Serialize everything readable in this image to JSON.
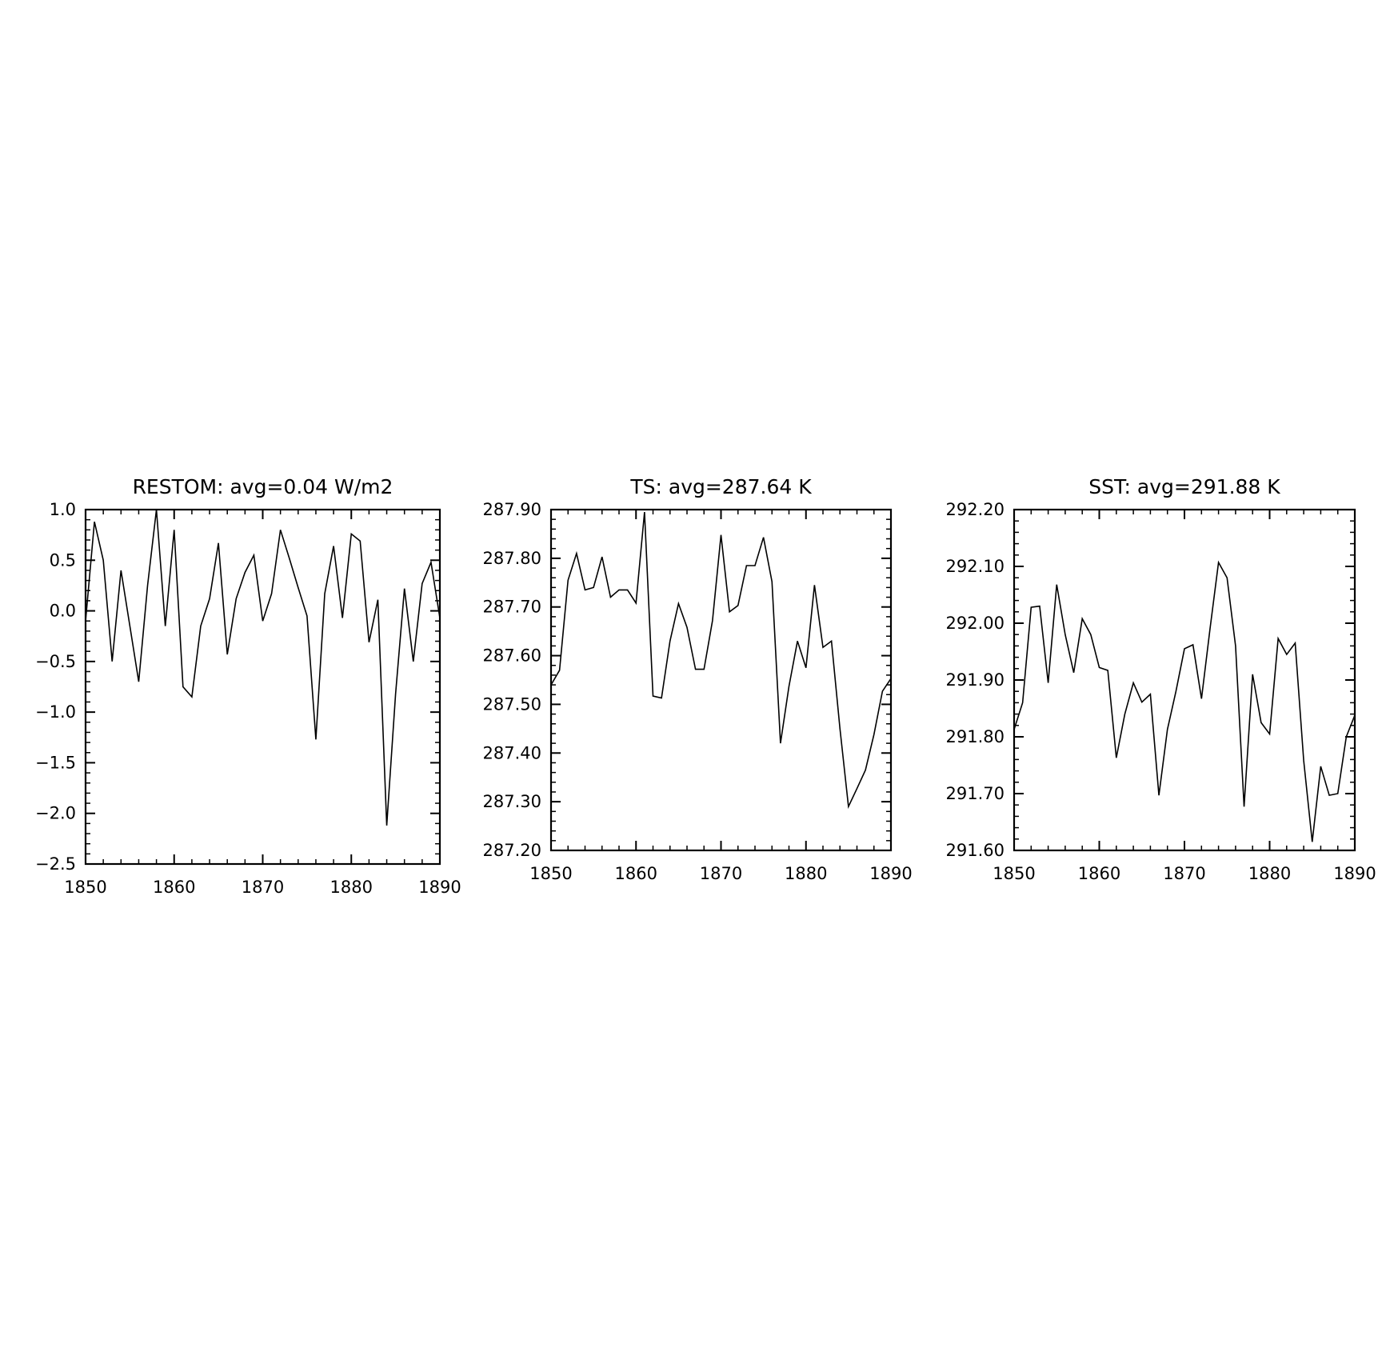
{
  "chart_data": [
    {
      "type": "line",
      "title": "RESTOM: avg=0.04 W/m2",
      "xlabel": "",
      "ylabel": "",
      "xlim": [
        1850,
        1890
      ],
      "ylim": [
        -2.5,
        1.0
      ],
      "x_ticks": [
        1850,
        1860,
        1870,
        1880,
        1890
      ],
      "x_tick_labels": [
        "1850",
        "1860",
        "1870",
        "1880",
        "1890"
      ],
      "y_ticks": [
        -2.5,
        -2.0,
        -1.5,
        -1.0,
        -0.5,
        0.0,
        0.5,
        1.0
      ],
      "y_tick_labels": [
        "−2.5",
        "−2.0",
        "−1.5",
        "−1.0",
        "−0.5",
        "0.0",
        "0.5",
        "1.0"
      ],
      "grid": false,
      "series": [
        {
          "color": "#000000",
          "x": [
            1850,
            1851,
            1852,
            1853,
            1854,
            1855,
            1856,
            1857,
            1858,
            1859,
            1860,
            1861,
            1862,
            1863,
            1864,
            1865,
            1866,
            1867,
            1868,
            1869,
            1870,
            1871,
            1872,
            1873,
            1874,
            1875,
            1876,
            1877,
            1878,
            1879,
            1880,
            1881,
            1882,
            1883,
            1884,
            1885,
            1886,
            1887,
            1888,
            1889,
            1890
          ],
          "y": [
            -0.1,
            0.88,
            0.5,
            -0.5,
            0.4,
            -0.15,
            -0.7,
            0.25,
            1.0,
            -0.15,
            0.8,
            -0.75,
            -0.85,
            -0.15,
            0.12,
            0.67,
            -0.43,
            0.12,
            0.38,
            0.55,
            -0.1,
            0.17,
            0.8,
            0.52,
            0.23,
            -0.05,
            -1.27,
            0.17,
            0.64,
            -0.07,
            0.76,
            0.69,
            -0.31,
            0.11,
            -2.12,
            -0.82,
            0.22,
            -0.5,
            0.27,
            0.48,
            -0.07
          ]
        }
      ]
    },
    {
      "type": "line",
      "title": "TS: avg=287.64 K",
      "xlabel": "",
      "ylabel": "",
      "xlim": [
        1850,
        1890
      ],
      "ylim": [
        287.2,
        287.9
      ],
      "x_ticks": [
        1850,
        1860,
        1870,
        1880,
        1890
      ],
      "x_tick_labels": [
        "1850",
        "1860",
        "1870",
        "1880",
        "1890"
      ],
      "y_ticks": [
        287.2,
        287.3,
        287.4,
        287.5,
        287.6,
        287.7,
        287.8,
        287.9
      ],
      "y_tick_labels": [
        "287.20",
        "287.30",
        "287.40",
        "287.50",
        "287.60",
        "287.70",
        "287.80",
        "287.90"
      ],
      "grid": false,
      "series": [
        {
          "color": "#000000",
          "x": [
            1850,
            1851,
            1852,
            1853,
            1854,
            1855,
            1856,
            1857,
            1858,
            1859,
            1860,
            1861,
            1862,
            1863,
            1864,
            1865,
            1866,
            1867,
            1868,
            1869,
            1870,
            1871,
            1872,
            1873,
            1874,
            1875,
            1876,
            1877,
            1878,
            1879,
            1880,
            1881,
            1882,
            1883,
            1884,
            1885,
            1886,
            1887,
            1888,
            1889,
            1890
          ],
          "y": [
            287.54,
            287.57,
            287.755,
            287.81,
            287.735,
            287.74,
            287.803,
            287.72,
            287.735,
            287.735,
            287.708,
            287.895,
            287.517,
            287.513,
            287.63,
            287.707,
            287.658,
            287.572,
            287.572,
            287.672,
            287.848,
            287.69,
            287.703,
            287.785,
            287.785,
            287.843,
            287.752,
            287.42,
            287.537,
            287.63,
            287.575,
            287.745,
            287.617,
            287.63,
            287.45,
            287.29,
            287.327,
            287.365,
            287.438,
            287.527,
            287.553
          ]
        }
      ]
    },
    {
      "type": "line",
      "title": "SST: avg=291.88 K",
      "xlabel": "",
      "ylabel": "",
      "xlim": [
        1850,
        1890
      ],
      "ylim": [
        291.6,
        292.2
      ],
      "x_ticks": [
        1850,
        1860,
        1870,
        1880,
        1890
      ],
      "x_tick_labels": [
        "1850",
        "1860",
        "1870",
        "1880",
        "1890"
      ],
      "y_ticks": [
        291.6,
        291.7,
        291.8,
        291.9,
        292.0,
        292.1,
        292.2
      ],
      "y_tick_labels": [
        "291.60",
        "291.70",
        "291.80",
        "291.90",
        "292.00",
        "292.10",
        "292.20"
      ],
      "grid": false,
      "series": [
        {
          "color": "#000000",
          "x": [
            1850,
            1851,
            1852,
            1853,
            1854,
            1855,
            1856,
            1857,
            1858,
            1859,
            1860,
            1861,
            1862,
            1863,
            1864,
            1865,
            1866,
            1867,
            1868,
            1869,
            1870,
            1871,
            1872,
            1873,
            1874,
            1875,
            1876,
            1877,
            1878,
            1879,
            1880,
            1881,
            1882,
            1883,
            1884,
            1885,
            1886,
            1887,
            1888,
            1889,
            1890
          ],
          "y": [
            291.813,
            291.86,
            292.028,
            292.03,
            291.895,
            292.068,
            291.98,
            291.913,
            292.008,
            291.98,
            291.922,
            291.917,
            291.763,
            291.84,
            291.895,
            291.861,
            291.875,
            291.697,
            291.813,
            291.88,
            291.955,
            291.962,
            291.867,
            291.99,
            292.107,
            292.08,
            291.96,
            291.677,
            291.91,
            291.825,
            291.805,
            291.973,
            291.945,
            291.965,
            291.758,
            291.615,
            291.748,
            291.697,
            291.7,
            291.8,
            291.838
          ]
        }
      ]
    }
  ]
}
